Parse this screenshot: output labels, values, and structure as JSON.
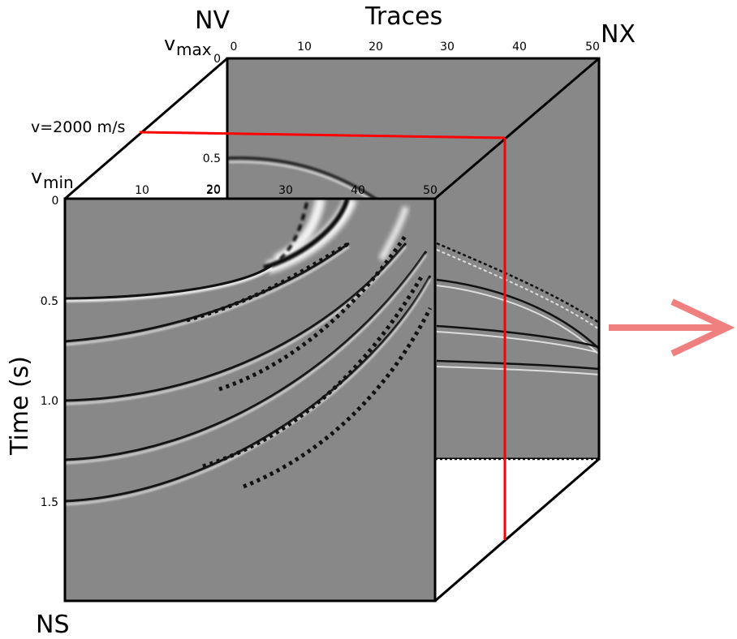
{
  "labels": {
    "nv": "NV",
    "nx": "NX",
    "ns": "NS",
    "traces": "Traces",
    "time": "Time (s)",
    "vmax_base": "v",
    "vmax_sub": "max",
    "vmin_base": "v",
    "vmin_sub": "min",
    "velocity_line": "v=2000 m/s"
  },
  "back_panel_ticks_x": [
    "0",
    "10",
    "20",
    "30",
    "40",
    "50"
  ],
  "front_panel_ticks_x": [
    "0",
    "10",
    "20",
    "30",
    "40",
    "50"
  ],
  "back_panel_ticks_y": [
    "0",
    "0.5",
    "20"
  ],
  "front_panel_ticks_y": [
    "0",
    "0.5",
    "1.0",
    "1.5"
  ],
  "colors": {
    "panel_gray": "#888888",
    "frame": "#000000",
    "velocity_line": "#ff0000",
    "arrow": "#f08080"
  },
  "icons": {
    "arrow": "right-arrow-icon"
  }
}
